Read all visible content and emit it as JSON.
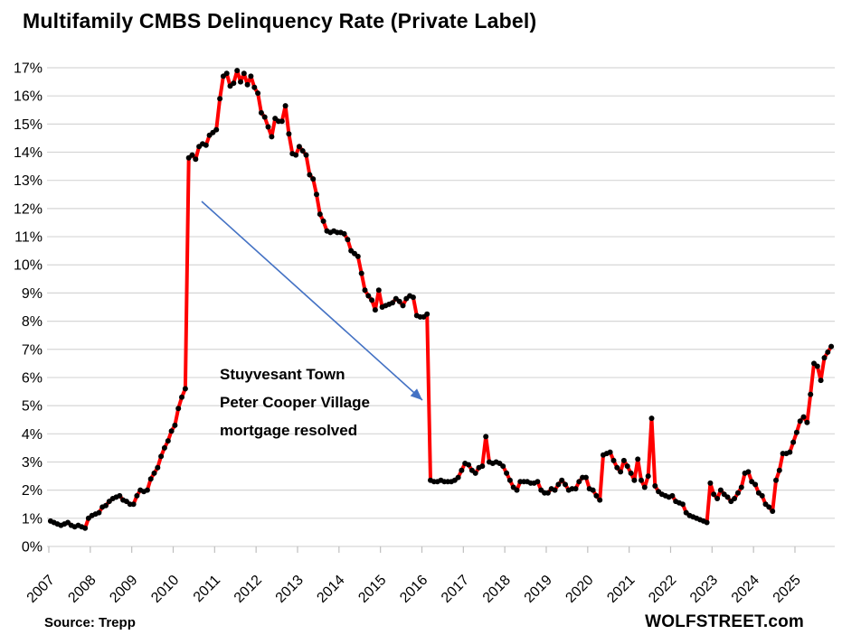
{
  "title": "Multifamily CMBS Delinquency Rate (Private Label)",
  "source": "Source: Trepp",
  "branding": "WOLFSTREET.com",
  "annotation": {
    "lines": [
      "Stuyvesant Town",
      "Peter Cooper Village",
      "mortgage resolved"
    ]
  },
  "colors": {
    "line": "#FF0000",
    "marker": "#000000",
    "grid": "#D6D6D6",
    "tick": "#BFBFBF",
    "arrow": "#4472C4",
    "text": "#000000",
    "background": "#FFFFFF"
  },
  "chart_data": {
    "type": "line",
    "title": "Multifamily CMBS Delinquency Rate (Private Label)",
    "unit": "%",
    "frequency": "monthly",
    "x_start": "2007-01",
    "x_end": "2025-11",
    "ylim": [
      0,
      17
    ],
    "ytick_step": 1,
    "y_tick_labels": [
      "0%",
      "1%",
      "2%",
      "3%",
      "4%",
      "5%",
      "6%",
      "7%",
      "8%",
      "9%",
      "10%",
      "11%",
      "12%",
      "13%",
      "14%",
      "15%",
      "16%",
      "17%"
    ],
    "x_tick_years": [
      2007,
      2008,
      2009,
      2010,
      2011,
      2012,
      2013,
      2014,
      2015,
      2016,
      2017,
      2018,
      2019,
      2020,
      2021,
      2022,
      2023,
      2024,
      2025
    ],
    "grid": "horizontal",
    "legend": "none",
    "series": [
      {
        "name": "Multifamily CMBS delinquency rate",
        "values_by_year": {
          "2007": [
            0.9,
            0.85,
            0.8,
            0.75,
            0.8,
            0.85,
            0.75,
            0.7,
            0.75,
            0.7,
            0.65,
            1.0
          ],
          "2008": [
            1.1,
            1.15,
            1.2,
            1.4,
            1.45,
            1.6,
            1.7,
            1.75,
            1.8,
            1.65,
            1.6,
            1.5
          ],
          "2009": [
            1.5,
            1.8,
            2.0,
            1.95,
            2.0,
            2.4,
            2.6,
            2.8,
            3.2,
            3.5,
            3.75,
            4.1
          ],
          "2010": [
            4.3,
            4.9,
            5.3,
            5.6,
            13.8,
            13.9,
            13.75,
            14.2,
            14.3,
            14.25,
            14.6,
            14.7
          ],
          "2011": [
            14.8,
            15.9,
            16.7,
            16.8,
            16.35,
            16.45,
            16.9,
            16.5,
            16.8,
            16.4,
            16.7,
            16.3
          ],
          "2012": [
            16.1,
            15.4,
            15.25,
            14.9,
            14.55,
            15.2,
            15.1,
            15.1,
            15.65,
            14.65,
            13.95,
            13.9
          ],
          "2013": [
            14.2,
            14.05,
            13.9,
            13.2,
            13.05,
            12.5,
            11.8,
            11.55,
            11.2,
            11.15,
            11.2,
            11.15
          ],
          "2014": [
            11.15,
            11.1,
            10.9,
            10.5,
            10.4,
            10.3,
            9.7,
            9.1,
            8.9,
            8.75,
            8.4,
            9.1
          ],
          "2015": [
            8.5,
            8.55,
            8.6,
            8.65,
            8.8,
            8.7,
            8.55,
            8.8,
            8.9,
            8.85,
            8.2,
            8.15
          ],
          "2016": [
            8.15,
            8.25,
            2.35,
            2.3,
            2.3,
            2.35,
            2.3,
            2.3,
            2.3,
            2.35,
            2.45,
            2.7
          ],
          "2017": [
            2.95,
            2.9,
            2.7,
            2.6,
            2.8,
            2.85,
            3.9,
            3.0,
            2.95,
            3.0,
            2.95,
            2.85
          ],
          "2018": [
            2.6,
            2.35,
            2.1,
            2.0,
            2.3,
            2.3,
            2.3,
            2.25,
            2.25,
            2.3,
            2.0,
            1.9
          ],
          "2019": [
            1.9,
            2.05,
            2.0,
            2.2,
            2.35,
            2.2,
            2.0,
            2.05,
            2.05,
            2.3,
            2.45,
            2.45
          ],
          "2020": [
            2.05,
            2.0,
            1.8,
            1.65,
            3.25,
            3.3,
            3.35,
            3.05,
            2.8,
            2.65,
            3.05,
            2.85
          ],
          "2021": [
            2.6,
            2.35,
            3.1,
            2.35,
            2.1,
            2.5,
            4.55,
            2.15,
            1.95,
            1.85,
            1.8,
            1.75
          ],
          "2022": [
            1.8,
            1.6,
            1.55,
            1.5,
            1.2,
            1.1,
            1.05,
            1.0,
            0.95,
            0.9,
            0.85,
            2.25
          ],
          "2023": [
            1.85,
            1.7,
            2.0,
            1.85,
            1.75,
            1.6,
            1.7,
            1.9,
            2.1,
            2.6,
            2.65,
            2.3
          ],
          "2024": [
            2.2,
            1.9,
            1.8,
            1.5,
            1.4,
            1.25,
            2.35,
            2.7,
            3.3,
            3.3,
            3.35,
            3.7
          ],
          "2025": [
            4.05,
            4.45,
            4.6,
            4.4,
            5.4,
            6.5,
            6.4,
            5.9,
            6.7,
            6.9,
            7.1
          ]
        }
      }
    ],
    "annotations": [
      {
        "text": "Stuyvesant Town Peter Cooper Village mortgage resolved",
        "points_at": "2016 drop from ~8.2% to ~2.3%"
      }
    ]
  }
}
